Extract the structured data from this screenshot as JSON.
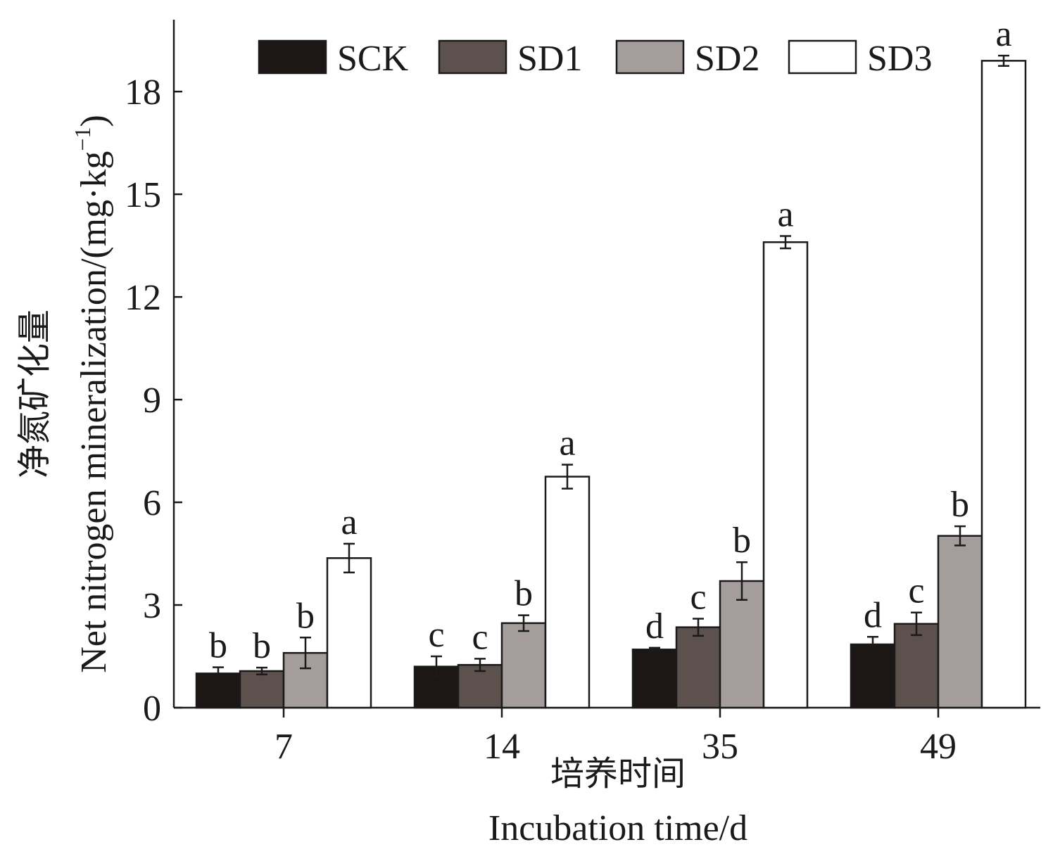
{
  "chart_data": {
    "type": "bar",
    "categories": [
      "7",
      "14",
      "35",
      "49"
    ],
    "series": [
      {
        "name": "SCK",
        "color": "#1c1614",
        "values": [
          1.0,
          1.2,
          1.7,
          1.85
        ],
        "errors": [
          0.18,
          0.3,
          0.05,
          0.22
        ],
        "letters": [
          "b",
          "c",
          "d",
          "d"
        ]
      },
      {
        "name": "SD1",
        "color": "#5c514d",
        "values": [
          1.07,
          1.25,
          2.35,
          2.45
        ],
        "errors": [
          0.1,
          0.18,
          0.25,
          0.33
        ],
        "letters": [
          "b",
          "c",
          "c",
          "c"
        ]
      },
      {
        "name": "SD2",
        "color": "#a59d9b",
        "values": [
          1.6,
          2.47,
          3.7,
          5.02
        ],
        "errors": [
          0.45,
          0.23,
          0.55,
          0.28
        ],
        "letters": [
          "b",
          "b",
          "b",
          "b"
        ]
      },
      {
        "name": "SD3",
        "color": "#ffffff",
        "values": [
          4.37,
          6.75,
          13.6,
          18.9
        ],
        "errors": [
          0.42,
          0.35,
          0.18,
          0.15
        ],
        "letters": [
          "a",
          "a",
          "a",
          "a"
        ]
      }
    ],
    "ylabel_cn": "净氮矿化量",
    "ylabel_en": "Net nitrogen mineralization/(mg·kg",
    "ylabel_sup": "−1",
    "ylabel_close": ")",
    "xlabel_cn": "培养时间",
    "xlabel_en": "Incubation time/d",
    "yticks": [
      "0",
      "3",
      "6",
      "9",
      "12",
      "15",
      "18"
    ],
    "ytick_values": [
      0,
      3,
      6,
      9,
      12,
      15,
      18
    ],
    "ylim": [
      0,
      20.1
    ],
    "legend_position": "top-center"
  }
}
